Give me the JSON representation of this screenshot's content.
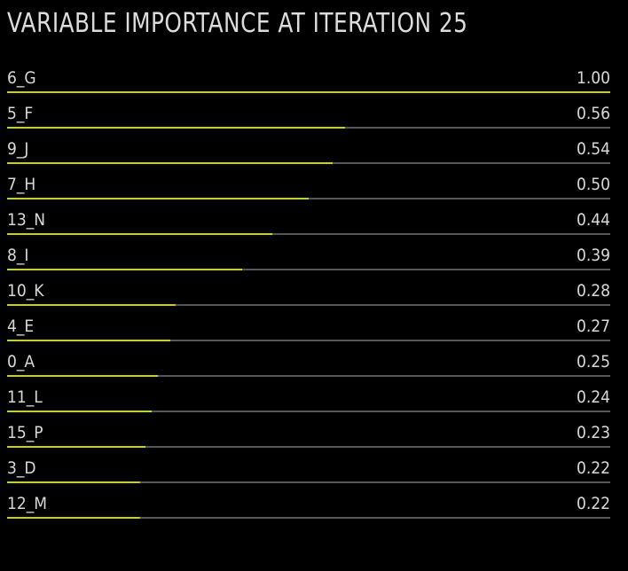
{
  "title": "VARIABLE IMPORTANCE AT ITERATION 25",
  "colors": {
    "background": "#000000",
    "bar": "#c8d400",
    "track": "#555555",
    "text": "#d8d8d8"
  },
  "chart_data": {
    "type": "bar",
    "orientation": "horizontal",
    "title": "VARIABLE IMPORTANCE AT ITERATION 25",
    "xlim": [
      0,
      1
    ],
    "categories": [
      "6_G",
      "5_F",
      "9_J",
      "7_H",
      "13_N",
      "8_I",
      "10_K",
      "4_E",
      "0_A",
      "11_L",
      "15_P",
      "3_D",
      "12_M"
    ],
    "values": [
      1.0,
      0.56,
      0.54,
      0.5,
      0.44,
      0.39,
      0.28,
      0.27,
      0.25,
      0.24,
      0.23,
      0.22,
      0.22
    ],
    "value_labels": [
      "1.00",
      "0.56",
      "0.54",
      "0.50",
      "0.44",
      "0.39",
      "0.28",
      "0.27",
      "0.25",
      "0.24",
      "0.23",
      "0.22",
      "0.22"
    ]
  }
}
